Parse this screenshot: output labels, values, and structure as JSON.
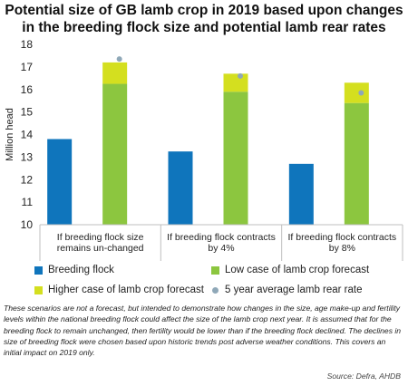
{
  "chart_data": {
    "type": "bar",
    "title_lines": [
      "Potential size of GB lamb crop in 2019 based upon changes",
      "in the breeding flock size and potential lamb rear rates"
    ],
    "ylabel": "Million head",
    "ylim": [
      10,
      18
    ],
    "yticks": [
      10,
      11,
      12,
      13,
      14,
      15,
      16,
      17,
      18
    ],
    "categories": [
      [
        "If breeding flock size",
        "remains un-changed"
      ],
      [
        "If breeding flock contracts",
        "by 4%"
      ],
      [
        "If breeding flock contracts",
        "by 8%"
      ]
    ],
    "series": [
      {
        "name": "Breeding flock",
        "values": [
          13.8,
          13.25,
          12.7
        ],
        "color": "#0f75bc"
      },
      {
        "name": "Low case of lamb crop forecast",
        "values": [
          16.25,
          15.9,
          15.4
        ],
        "color": "#8cc63f"
      },
      {
        "name": "Higher case of lamb crop forecast",
        "values": [
          17.2,
          16.7,
          16.3
        ],
        "color": "#d4df1f"
      },
      {
        "name": "5 year average lamb rear rate",
        "values": [
          17.35,
          16.6,
          15.85
        ],
        "color": "#8fa8b8"
      }
    ]
  },
  "note": "These scenarios are not a forecast, but intended to demonstrate how changes in the size, age make-up and fertility levels within the national breeding flock could affect the size of the lamb crop next year. It is assumed that for the breeding flock to remain unchanged, then fertility would be lower than if the breeding flock declined. The declines in size of breeding flock were chosen based upon historic trends post adverse weather conditions. This covers an initial impact on 2019 only.",
  "source": "Source: Defra, AHDB"
}
